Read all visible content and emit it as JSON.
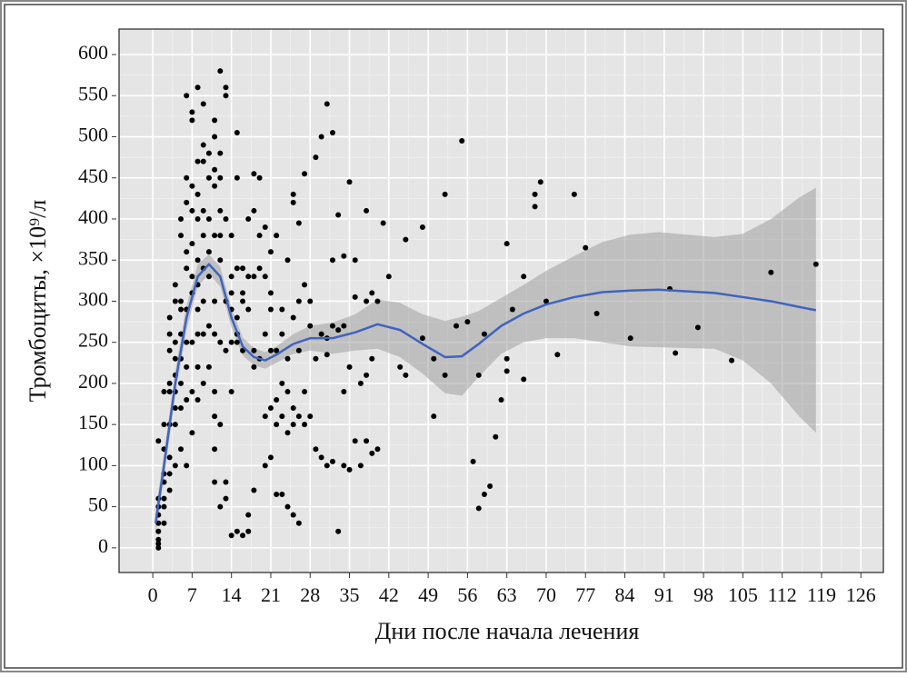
{
  "chart_data": {
    "type": "scatter",
    "x_label": "Дни после начала лечения",
    "y_label": "Тромбоциты, ×10⁹/л",
    "xlim": [
      -6,
      130
    ],
    "ylim": [
      -30,
      631
    ],
    "xticks": [
      0,
      7,
      14,
      21,
      28,
      35,
      42,
      49,
      56,
      63,
      70,
      77,
      84,
      91,
      98,
      105,
      112,
      119,
      126
    ],
    "yticks": [
      0,
      50,
      100,
      150,
      200,
      250,
      300,
      350,
      400,
      450,
      500,
      550,
      600
    ],
    "grid": true,
    "points": {
      "color": "#000000",
      "x": [
        1,
        1,
        1,
        1,
        1,
        1,
        1,
        1,
        1,
        2,
        2,
        2,
        2,
        2,
        2,
        2,
        2,
        3,
        3,
        3,
        3,
        3,
        3,
        3,
        3,
        3,
        4,
        4,
        4,
        4,
        4,
        4,
        4,
        4,
        4,
        5,
        5,
        5,
        5,
        5,
        5,
        5,
        5,
        5,
        6,
        6,
        6,
        6,
        6,
        6,
        6,
        6,
        6,
        6,
        7,
        7,
        7,
        7,
        7,
        7,
        7,
        7,
        7,
        7,
        8,
        8,
        8,
        8,
        8,
        8,
        8,
        8,
        8,
        8,
        9,
        9,
        9,
        9,
        9,
        9,
        9,
        9,
        9,
        10,
        10,
        10,
        10,
        10,
        10,
        10,
        11,
        11,
        11,
        11,
        11,
        11,
        11,
        11,
        11,
        11,
        11,
        12,
        12,
        12,
        12,
        12,
        12,
        12,
        12,
        12,
        13,
        13,
        13,
        13,
        13,
        13,
        13,
        14,
        14,
        14,
        14,
        14,
        14,
        14,
        15,
        15,
        15,
        15,
        15,
        15,
        15,
        16,
        16,
        16,
        16,
        16,
        17,
        17,
        17,
        17,
        17,
        18,
        18,
        18,
        18,
        18,
        18,
        19,
        19,
        19,
        19,
        20,
        20,
        20,
        20,
        20,
        21,
        21,
        21,
        21,
        21,
        21,
        22,
        22,
        22,
        22,
        22,
        23,
        23,
        23,
        23,
        23,
        24,
        24,
        24,
        24,
        24,
        25,
        25,
        25,
        25,
        25,
        25,
        26,
        26,
        26,
        26,
        26,
        27,
        27,
        27,
        27,
        28,
        28,
        28,
        29,
        29,
        29,
        30,
        30,
        30,
        31,
        31,
        31,
        31,
        32,
        32,
        32,
        32,
        33,
        33,
        33,
        34,
        34,
        34,
        34,
        35,
        35,
        35,
        36,
        36,
        36,
        37,
        37,
        38,
        38,
        38,
        38,
        39,
        39,
        39,
        40,
        40,
        41,
        42,
        44,
        45,
        45,
        48,
        48,
        50,
        50,
        52,
        52,
        54,
        55,
        56,
        57,
        58,
        58,
        59,
        59,
        60,
        61,
        62,
        63,
        63,
        63,
        64,
        66,
        66,
        68,
        68,
        69,
        70,
        72,
        75,
        77,
        79,
        85,
        92,
        93,
        97,
        103,
        110,
        118
      ],
      "y": [
        0,
        5,
        10,
        20,
        30,
        40,
        50,
        60,
        130,
        30,
        50,
        60,
        80,
        90,
        120,
        150,
        190,
        70,
        90,
        110,
        150,
        190,
        200,
        240,
        260,
        280,
        100,
        150,
        170,
        190,
        210,
        230,
        250,
        300,
        320,
        120,
        170,
        200,
        230,
        260,
        290,
        300,
        380,
        400,
        100,
        180,
        220,
        250,
        290,
        340,
        360,
        420,
        450,
        550,
        140,
        190,
        250,
        310,
        330,
        370,
        410,
        440,
        530,
        520,
        180,
        220,
        260,
        290,
        320,
        350,
        400,
        430,
        470,
        560,
        200,
        260,
        300,
        340,
        380,
        410,
        470,
        490,
        540,
        220,
        270,
        330,
        360,
        400,
        450,
        480,
        80,
        120,
        160,
        190,
        260,
        300,
        380,
        440,
        460,
        500,
        520,
        50,
        150,
        250,
        350,
        380,
        410,
        450,
        480,
        580,
        60,
        80,
        240,
        300,
        400,
        550,
        560,
        15,
        190,
        250,
        290,
        310,
        330,
        380,
        20,
        250,
        260,
        280,
        340,
        450,
        505,
        15,
        240,
        300,
        310,
        340,
        20,
        40,
        290,
        330,
        400,
        70,
        220,
        240,
        330,
        410,
        455,
        230,
        340,
        380,
        450,
        100,
        160,
        260,
        330,
        390,
        110,
        170,
        240,
        290,
        310,
        360,
        65,
        150,
        180,
        240,
        380,
        65,
        160,
        200,
        260,
        290,
        50,
        140,
        190,
        230,
        350,
        40,
        150,
        170,
        280,
        420,
        430,
        30,
        160,
        240,
        300,
        395,
        150,
        190,
        320,
        455,
        160,
        270,
        300,
        120,
        230,
        475,
        110,
        260,
        500,
        100,
        235,
        255,
        540,
        105,
        270,
        350,
        505,
        20,
        265,
        405,
        100,
        190,
        270,
        355,
        95,
        220,
        445,
        130,
        305,
        350,
        100,
        200,
        130,
        210,
        300,
        410,
        115,
        230,
        310,
        120,
        300,
        395,
        330,
        220,
        375,
        210,
        255,
        390,
        160,
        230,
        210,
        430,
        270,
        495,
        275,
        105,
        48,
        210,
        65,
        260,
        75,
        135,
        180,
        230,
        370,
        215,
        290,
        205,
        330,
        415,
        430,
        445,
        300,
        235,
        430,
        365,
        285,
        255,
        315,
        237,
        268,
        228,
        335,
        345
      ]
    },
    "smooth": {
      "color": "#3f63bf",
      "band_color": "#a0a0a0",
      "x": [
        0.5,
        2,
        4,
        6,
        8,
        10,
        12,
        14,
        16,
        18,
        20,
        22,
        25,
        28,
        32,
        36,
        40,
        44,
        48,
        52,
        55,
        58,
        62,
        66,
        70,
        75,
        80,
        85,
        90,
        95,
        100,
        105,
        110,
        115,
        118
      ],
      "y": [
        30,
        100,
        200,
        280,
        330,
        345,
        330,
        280,
        245,
        232,
        228,
        235,
        248,
        255,
        255,
        262,
        272,
        265,
        248,
        232,
        233,
        248,
        270,
        285,
        296,
        305,
        311,
        313,
        314,
        312,
        310,
        305,
        300,
        293,
        289
      ],
      "lower": [
        15,
        85,
        185,
        265,
        318,
        333,
        318,
        268,
        234,
        222,
        218,
        225,
        236,
        240,
        236,
        240,
        242,
        232,
        212,
        188,
        185,
        208,
        236,
        250,
        255,
        255,
        250,
        245,
        244,
        243,
        242,
        228,
        200,
        160,
        140
      ],
      "upper": [
        45,
        115,
        215,
        295,
        345,
        357,
        342,
        292,
        256,
        243,
        238,
        245,
        260,
        270,
        274,
        284,
        302,
        298,
        284,
        276,
        281,
        288,
        304,
        320,
        337,
        355,
        372,
        381,
        384,
        381,
        378,
        382,
        400,
        426,
        438
      ]
    }
  }
}
